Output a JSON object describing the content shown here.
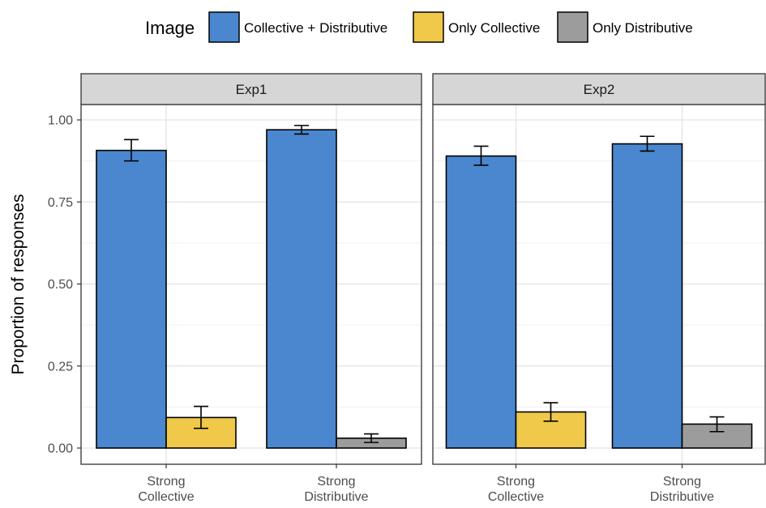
{
  "chart_data": {
    "type": "bar",
    "ylabel": "Proportion of responses",
    "xlabel": "",
    "ylim": [
      0,
      1.05
    ],
    "yticks": [
      "0.00",
      "0.25",
      "0.50",
      "0.75",
      "1.00"
    ],
    "categories": [
      "Strong\nCollective",
      "Strong\nDistributive"
    ],
    "legend": {
      "title": "Image",
      "position": "top",
      "entries": [
        {
          "name": "Collective + Distributive",
          "color": "#4a87cf"
        },
        {
          "name": "Only Collective",
          "color": "#f0c94b"
        },
        {
          "name": "Only Distributive",
          "color": "#9c9c9c"
        }
      ]
    },
    "facets": [
      {
        "name": "Exp1",
        "groups": [
          {
            "category": "Strong\nCollective",
            "bars": [
              {
                "series": "Collective + Distributive",
                "value": 0.907,
                "err_low": 0.875,
                "err_high": 0.94
              },
              {
                "series": "Only Collective",
                "value": 0.093,
                "err_low": 0.06,
                "err_high": 0.127
              }
            ]
          },
          {
            "category": "Strong\nDistributive",
            "bars": [
              {
                "series": "Collective + Distributive",
                "value": 0.97,
                "err_low": 0.957,
                "err_high": 0.983
              },
              {
                "series": "Only Distributive",
                "value": 0.03,
                "err_low": 0.017,
                "err_high": 0.043
              }
            ]
          }
        ]
      },
      {
        "name": "Exp2",
        "groups": [
          {
            "category": "Strong\nCollective",
            "bars": [
              {
                "series": "Collective + Distributive",
                "value": 0.89,
                "err_low": 0.862,
                "err_high": 0.92
              },
              {
                "series": "Only Collective",
                "value": 0.11,
                "err_low": 0.082,
                "err_high": 0.138
              }
            ]
          },
          {
            "category": "Strong\nDistributive",
            "bars": [
              {
                "series": "Collective + Distributive",
                "value": 0.927,
                "err_low": 0.905,
                "err_high": 0.95
              },
              {
                "series": "Only Distributive",
                "value": 0.073,
                "err_low": 0.05,
                "err_high": 0.095
              }
            ]
          }
        ]
      }
    ],
    "grid": true,
    "error_bars": true
  }
}
